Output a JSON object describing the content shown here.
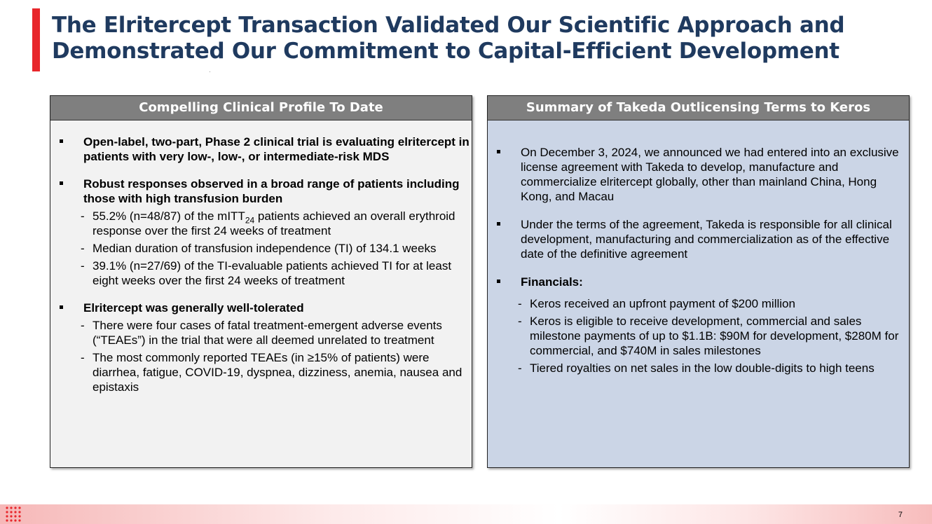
{
  "title": {
    "line1": "The Elritercept Transaction Validated Our Scientific Approach and",
    "line2": "Demonstrated Our Commitment to Capital-Efficient Development"
  },
  "left_panel": {
    "header": "Compelling Clinical Profile To Date",
    "bullet1": "Open-label, two-part, Phase 2 clinical trial is evaluating elritercept in patients with very low-, low-, or intermediate-risk MDS",
    "bullet2": "Robust responses observed in a broad range of patients including those with high transfusion burden",
    "sub1_pre": "55.2% (n=48/87) of the mITT",
    "sub1_subscript": "24",
    "sub1_post": " patients achieved an overall erythroid response over the first 24 weeks of treatment",
    "sub2": "Median duration of transfusion independence (TI) of 134.1 weeks",
    "sub3": "39.1% (n=27/69) of the TI-evaluable patients achieved TI for at least eight weeks over the first 24 weeks of treatment",
    "bullet3": "Elritercept was generally well-tolerated",
    "sub4": "There were four cases of fatal treatment-emergent adverse events (“TEAEs”) in the trial that were all deemed unrelated to treatment",
    "sub5": "The most commonly reported TEAEs (in ≥15% of patients) were diarrhea, fatigue, COVID-19, dyspnea, dizziness, anemia, nausea and epistaxis"
  },
  "right_panel": {
    "header": "Summary of Takeda Outlicensing Terms to Keros",
    "bullet1": "On December 3, 2024, we announced we had entered into an exclusive license agreement with Takeda to develop, manufacture and commercialize elritercept globally, other than mainland China, Hong Kong, and Macau",
    "bullet2": "Under the terms of the agreement, Takeda is responsible for all clinical development, manufacturing and commercialization as of the effective date of the definitive agreement",
    "bullet3": "Financials:",
    "sub1": "Keros received an upfront payment of $200 million",
    "sub2": "Keros is eligible to receive development, commercial and sales milestone payments of up to $1.1B: $90M for development, $280M for commercial, and $740M in sales milestones",
    "sub3": "Tiered royalties on net sales in the low double-digits to high teens"
  },
  "footer": {
    "page_number": "7",
    "dash": "-"
  },
  "colors": {
    "accent_red": "#e8262b",
    "title_navy": "#1f3a5f",
    "header_gray": "#7f7f7f",
    "left_panel_bg": "#f2f2f2",
    "right_panel_bg": "#cbd5e6"
  },
  "icons": {
    "logo": "keros-logo-icon"
  }
}
